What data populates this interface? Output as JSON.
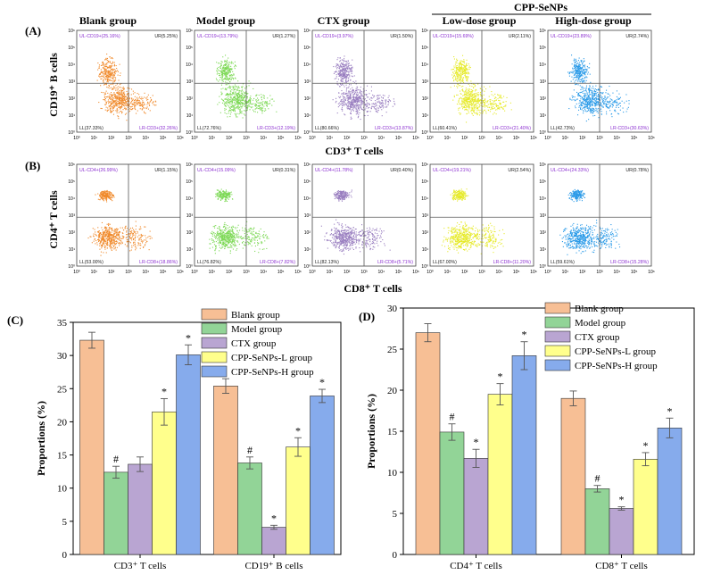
{
  "flow": {
    "panel_labels": [
      "(A)",
      "(B)"
    ],
    "group_titles": [
      "Blank group",
      "Model group",
      "CTX group",
      "Low-dose group",
      "High-dose group"
    ],
    "cpp_header": "CPP-SeNPs",
    "colors": [
      "#f08a2c",
      "#7ed957",
      "#9a7fc0",
      "#e6ea2a",
      "#2b9be8"
    ],
    "row_a": {
      "ylabel": "CD19⁺ B cells",
      "xlabel": "CD3⁺ T cells",
      "quadrants": [
        {
          "ul": "UL-CD19+(25.16%)",
          "ur": "UR(5.25%)",
          "ll": "LL(37.33%)",
          "lr": "LR-CD3+(32.26%)"
        },
        {
          "ul": "UL-CD19+(13.79%)",
          "ur": "UR(1.27%)",
          "ll": "LL(72.76%)",
          "lr": "LR-CD3+(12.19%)"
        },
        {
          "ul": "UL-CD19+(3.97%)",
          "ur": "UR(1.50%)",
          "ll": "LL(80.66%)",
          "lr": "LR-CD3+(13.87%)"
        },
        {
          "ul": "UL-CD19+(15.69%)",
          "ur": "UR(2.11%)",
          "ll": "LL(60.41%)",
          "lr": "LR-CD3+(21.40%)"
        },
        {
          "ul": "UL-CD19+(23.89%)",
          "ur": "UR(2.74%)",
          "ll": "LL(42.73%)",
          "lr": "LR-CD3+(30.63%)"
        }
      ]
    },
    "row_b": {
      "ylabel": "CD4⁺ T cells",
      "xlabel": "CD8⁺ T cells",
      "quadrants": [
        {
          "ul": "UL-CD4+(26.99%)",
          "ur": "UR(1.15%)",
          "ll": "LL(53.00%)",
          "lr": "LR-CD8+(18.86%)"
        },
        {
          "ul": "UL-CD4+(15.09%)",
          "ur": "UR(0.31%)",
          "ll": "LL(76.82%)",
          "lr": "LR-CD8+(7.82%)"
        },
        {
          "ul": "UL-CD4+(11.78%)",
          "ur": "UR(0.40%)",
          "ll": "LL(82.13%)",
          "lr": "LR-CD8+(5.71%)"
        },
        {
          "ul": "UL-CD4+(19.21%)",
          "ur": "UR(2.54%)",
          "ll": "LL(67.00%)",
          "lr": "LR-CD8+(11.20%)"
        },
        {
          "ul": "UL-CD4+(24.33%)",
          "ur": "UR(0.78%)",
          "ll": "LL(59.61%)",
          "lr": "LR-CD8+(15.28%)"
        }
      ]
    },
    "axis_ticks": [
      "10⁰",
      "10¹",
      "10²",
      "10³",
      "10⁴",
      "10⁵",
      "10⁶"
    ]
  },
  "chart_data": [
    {
      "panel": "(C)",
      "type": "bar",
      "ylabel": "Proportions (%)",
      "categories": [
        "CD3⁺ T cells",
        "CD19⁺ B cells"
      ],
      "ylim": [
        0,
        35
      ],
      "yticks": [
        0,
        5,
        10,
        15,
        20,
        25,
        30,
        35
      ],
      "legend_position": "top-right",
      "series": [
        {
          "name": "Blank group",
          "color": "#f7bf95",
          "values": [
            32.3,
            25.4
          ],
          "errors": [
            1.2,
            1.1
          ],
          "marks": [
            "",
            ""
          ]
        },
        {
          "name": "Model group",
          "color": "#92d497",
          "values": [
            12.4,
            13.8
          ],
          "errors": [
            0.9,
            0.9
          ],
          "marks": [
            "#",
            "#"
          ]
        },
        {
          "name": "CTX group",
          "color": "#b9a5d2",
          "values": [
            13.6,
            4.1
          ],
          "errors": [
            1.1,
            0.3
          ],
          "marks": [
            "",
            "*"
          ]
        },
        {
          "name": "CPP-SeNPs-L group",
          "color": "#ffff8c",
          "values": [
            21.5,
            16.2
          ],
          "errors": [
            2.0,
            1.4
          ],
          "marks": [
            "*",
            "*"
          ]
        },
        {
          "name": "CPP-SeNPs-H group",
          "color": "#86abec",
          "values": [
            30.1,
            23.9
          ],
          "errors": [
            1.5,
            1.0
          ],
          "marks": [
            "*",
            "*"
          ]
        }
      ]
    },
    {
      "panel": "(D)",
      "type": "bar",
      "ylabel": "Proportions (%)",
      "categories": [
        "CD4⁺ T cells",
        "CD8⁺ T cells"
      ],
      "ylim": [
        0,
        30
      ],
      "yticks": [
        0,
        5,
        10,
        15,
        20,
        25,
        30
      ],
      "legend_position": "top-right",
      "series": [
        {
          "name": "Blank group",
          "color": "#f7bf95",
          "values": [
            27.0,
            19.0
          ],
          "errors": [
            1.1,
            0.9
          ],
          "marks": [
            "",
            ""
          ]
        },
        {
          "name": "Model group",
          "color": "#92d497",
          "values": [
            14.9,
            8.0
          ],
          "errors": [
            1.0,
            0.4
          ],
          "marks": [
            "#",
            "#"
          ]
        },
        {
          "name": "CTX group",
          "color": "#b9a5d2",
          "values": [
            11.7,
            5.6
          ],
          "errors": [
            1.1,
            0.2
          ],
          "marks": [
            "*",
            "*"
          ]
        },
        {
          "name": "CPP-SeNPs-L group",
          "color": "#ffff8c",
          "values": [
            19.5,
            11.6
          ],
          "errors": [
            1.3,
            0.8
          ],
          "marks": [
            "*",
            "*"
          ]
        },
        {
          "name": "CPP-SeNPs-H group",
          "color": "#86abec",
          "values": [
            24.2,
            15.4
          ],
          "errors": [
            1.7,
            1.2
          ],
          "marks": [
            "*",
            "*"
          ]
        }
      ]
    }
  ]
}
